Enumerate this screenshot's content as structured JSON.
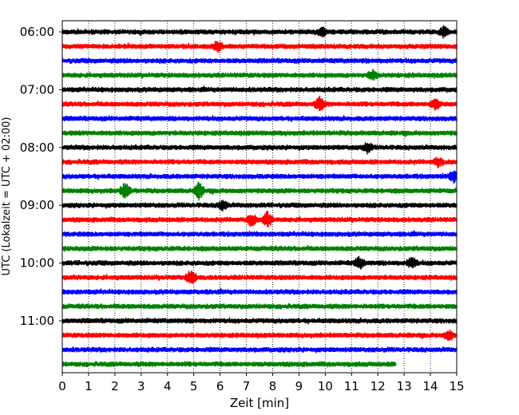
{
  "chart_data": {
    "type": "line",
    "title": "",
    "xlabel": "Zeit  [min]",
    "ylabel": "UTC (Lokalzeit = UTC + 02:00)",
    "xlim": [
      0,
      15
    ],
    "x_ticks": [
      "0",
      "1",
      "2",
      "3",
      "4",
      "5",
      "6",
      "7",
      "8",
      "9",
      "10",
      "11",
      "12",
      "13",
      "14",
      "15"
    ],
    "y_tick_labels": [
      "06:00",
      "07:00",
      "08:00",
      "09:00",
      "10:00",
      "11:00"
    ],
    "rows_per_hour": 4,
    "row_minutes": 15,
    "grid": "vertical dotted",
    "series_colors": [
      "#000000",
      "#ff0000",
      "#0000ff",
      "#008000"
    ],
    "rows": [
      {
        "start": "06:00",
        "color": "#000000",
        "end_min": 15
      },
      {
        "start": "06:15",
        "color": "#ff0000",
        "end_min": 15
      },
      {
        "start": "06:30",
        "color": "#0000ff",
        "end_min": 15
      },
      {
        "start": "06:45",
        "color": "#008000",
        "end_min": 15
      },
      {
        "start": "07:00",
        "color": "#000000",
        "end_min": 15
      },
      {
        "start": "07:15",
        "color": "#ff0000",
        "end_min": 15
      },
      {
        "start": "07:30",
        "color": "#0000ff",
        "end_min": 15
      },
      {
        "start": "07:45",
        "color": "#008000",
        "end_min": 15
      },
      {
        "start": "08:00",
        "color": "#000000",
        "end_min": 15
      },
      {
        "start": "08:15",
        "color": "#ff0000",
        "end_min": 15
      },
      {
        "start": "08:30",
        "color": "#0000ff",
        "end_min": 15
      },
      {
        "start": "08:45",
        "color": "#008000",
        "end_min": 15
      },
      {
        "start": "09:00",
        "color": "#000000",
        "end_min": 15
      },
      {
        "start": "09:15",
        "color": "#ff0000",
        "end_min": 15
      },
      {
        "start": "09:30",
        "color": "#0000ff",
        "end_min": 15
      },
      {
        "start": "09:45",
        "color": "#008000",
        "end_min": 15
      },
      {
        "start": "10:00",
        "color": "#000000",
        "end_min": 15
      },
      {
        "start": "10:15",
        "color": "#ff0000",
        "end_min": 15
      },
      {
        "start": "10:30",
        "color": "#0000ff",
        "end_min": 15
      },
      {
        "start": "10:45",
        "color": "#008000",
        "end_min": 15
      },
      {
        "start": "11:00",
        "color": "#000000",
        "end_min": 15
      },
      {
        "start": "11:15",
        "color": "#ff0000",
        "end_min": 15
      },
      {
        "start": "11:30",
        "color": "#0000ff",
        "end_min": 15
      },
      {
        "start": "11:45",
        "color": "#008000",
        "end_min": 12.7
      }
    ],
    "events": [
      {
        "row": 0,
        "min": 14.5,
        "amp": 1.6
      },
      {
        "row": 0,
        "min": 9.9,
        "amp": 1.4
      },
      {
        "row": 1,
        "min": 5.9,
        "amp": 1.5
      },
      {
        "row": 3,
        "min": 11.8,
        "amp": 1.5
      },
      {
        "row": 5,
        "min": 9.8,
        "amp": 2.2
      },
      {
        "row": 5,
        "min": 14.2,
        "amp": 1.6
      },
      {
        "row": 8,
        "min": 11.6,
        "amp": 1.5
      },
      {
        "row": 9,
        "min": 14.3,
        "amp": 1.5
      },
      {
        "row": 10,
        "min": 14.9,
        "amp": 1.8
      },
      {
        "row": 11,
        "min": 2.4,
        "amp": 2.6
      },
      {
        "row": 11,
        "min": 5.2,
        "amp": 2.6
      },
      {
        "row": 12,
        "min": 6.1,
        "amp": 1.5
      },
      {
        "row": 13,
        "min": 7.2,
        "amp": 2.0
      },
      {
        "row": 13,
        "min": 7.8,
        "amp": 2.4
      },
      {
        "row": 16,
        "min": 11.3,
        "amp": 1.8
      },
      {
        "row": 16,
        "min": 13.3,
        "amp": 1.8
      },
      {
        "row": 17,
        "min": 4.9,
        "amp": 2.4
      },
      {
        "row": 21,
        "min": 14.7,
        "amp": 1.6
      }
    ]
  }
}
